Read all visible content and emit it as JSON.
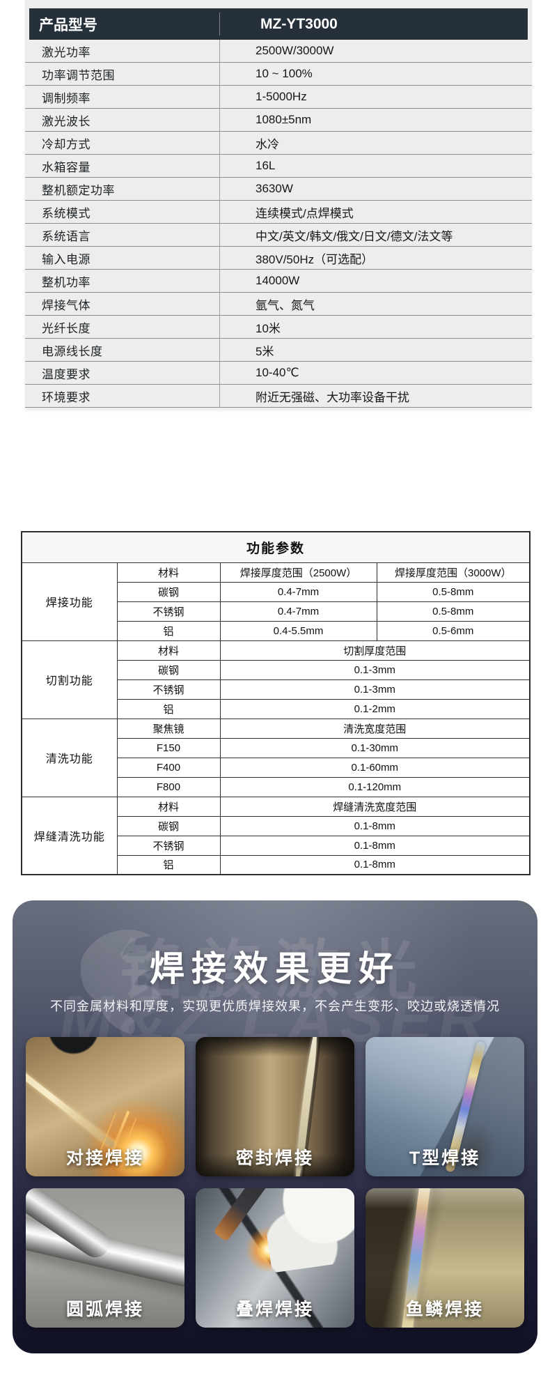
{
  "spec_table": {
    "header": {
      "label": "产品型号",
      "value": "MZ-YT3000"
    },
    "rows": [
      {
        "label": "激光功率",
        "value": "2500W/3000W"
      },
      {
        "label": "功率调节范围",
        "value": "10 ~ 100%"
      },
      {
        "label": "调制频率",
        "value": "1-5000Hz"
      },
      {
        "label": "激光波长",
        "value": "1080±5nm"
      },
      {
        "label": "冷却方式",
        "value": "水冷"
      },
      {
        "label": "水箱容量",
        "value": "16L"
      },
      {
        "label": "整机额定功率",
        "value": "3630W"
      },
      {
        "label": "系统模式",
        "value": "连续模式/点焊模式"
      },
      {
        "label": "系统语言",
        "value": "中文/英文/韩文/俄文/日文/德文/法文等"
      },
      {
        "label": "输入电源",
        "value": "380V/50Hz（可选配）"
      },
      {
        "label": "整机功率",
        "value": "14000W"
      },
      {
        "label": "焊接气体",
        "value": "氩气、氮气"
      },
      {
        "label": "光纤长度",
        "value": "10米"
      },
      {
        "label": "电源线长度",
        "value": "5米"
      },
      {
        "label": "温度要求",
        "value": "10-40℃"
      },
      {
        "label": "环境要求",
        "value": "附近无强磁、大功率设备干扰"
      }
    ]
  },
  "function_table": {
    "title": "功能参数",
    "sections": [
      {
        "category": "焊接功能",
        "rows": [
          [
            "材料",
            "焊接厚度范围（2500W）",
            "焊接厚度范围（3000W）"
          ],
          [
            "碳钢",
            "0.4-7mm",
            "0.5-8mm"
          ],
          [
            "不锈钢",
            "0.4-7mm",
            "0.5-8mm"
          ],
          [
            "铝",
            "0.4-5.5mm",
            "0.5-6mm"
          ]
        ]
      },
      {
        "category": "切割功能",
        "rows": [
          [
            "材料",
            "切割厚度范围"
          ],
          [
            "碳钢",
            "0.1-3mm"
          ],
          [
            "不锈钢",
            "0.1-3mm"
          ],
          [
            "铝",
            "0.1-2mm"
          ]
        ]
      },
      {
        "category": "清洗功能",
        "rows": [
          [
            "聚焦镜",
            "清洗宽度范围"
          ],
          [
            "F150",
            "0.1-30mm"
          ],
          [
            "F400",
            "0.1-60mm"
          ],
          [
            "F800",
            "0.1-120mm"
          ]
        ]
      },
      {
        "category": "焊缝清洗功能",
        "rows": [
          [
            "材料",
            "焊缝清洗宽度范围"
          ],
          [
            "碳钢",
            "0.1-8mm"
          ],
          [
            "不锈钢",
            "0.1-8mm"
          ],
          [
            "铝",
            "0.1-8mm"
          ]
        ]
      }
    ]
  },
  "hero": {
    "title": "焊接效果更好",
    "subtitle": "不同金属材料和厚度，实现更优质焊接效果，不会产生变形、咬边或烧透情况",
    "watermark_cn": "铭族激光",
    "watermark_en": "M&Z LASER",
    "cards": [
      {
        "id": "butt-welding",
        "label": "对接焊接"
      },
      {
        "id": "seal-welding",
        "label": "密封焊接"
      },
      {
        "id": "t-type-welding",
        "label": "T型焊接"
      },
      {
        "id": "arc-welding",
        "label": "圆弧焊接"
      },
      {
        "id": "lap-welding",
        "label": "叠焊焊接"
      },
      {
        "id": "fishscale-welding",
        "label": "鱼鳞焊接"
      }
    ]
  },
  "colors": {
    "spec_header_bg": "#25303b",
    "spec_panel_bg": "#ecedec",
    "table_border": "#2e2e2e",
    "hero_gradient_top": "#686d7c",
    "hero_gradient_bottom": "#121226",
    "hero_text": "#ffffff",
    "spark_orange": "#ffb040"
  }
}
